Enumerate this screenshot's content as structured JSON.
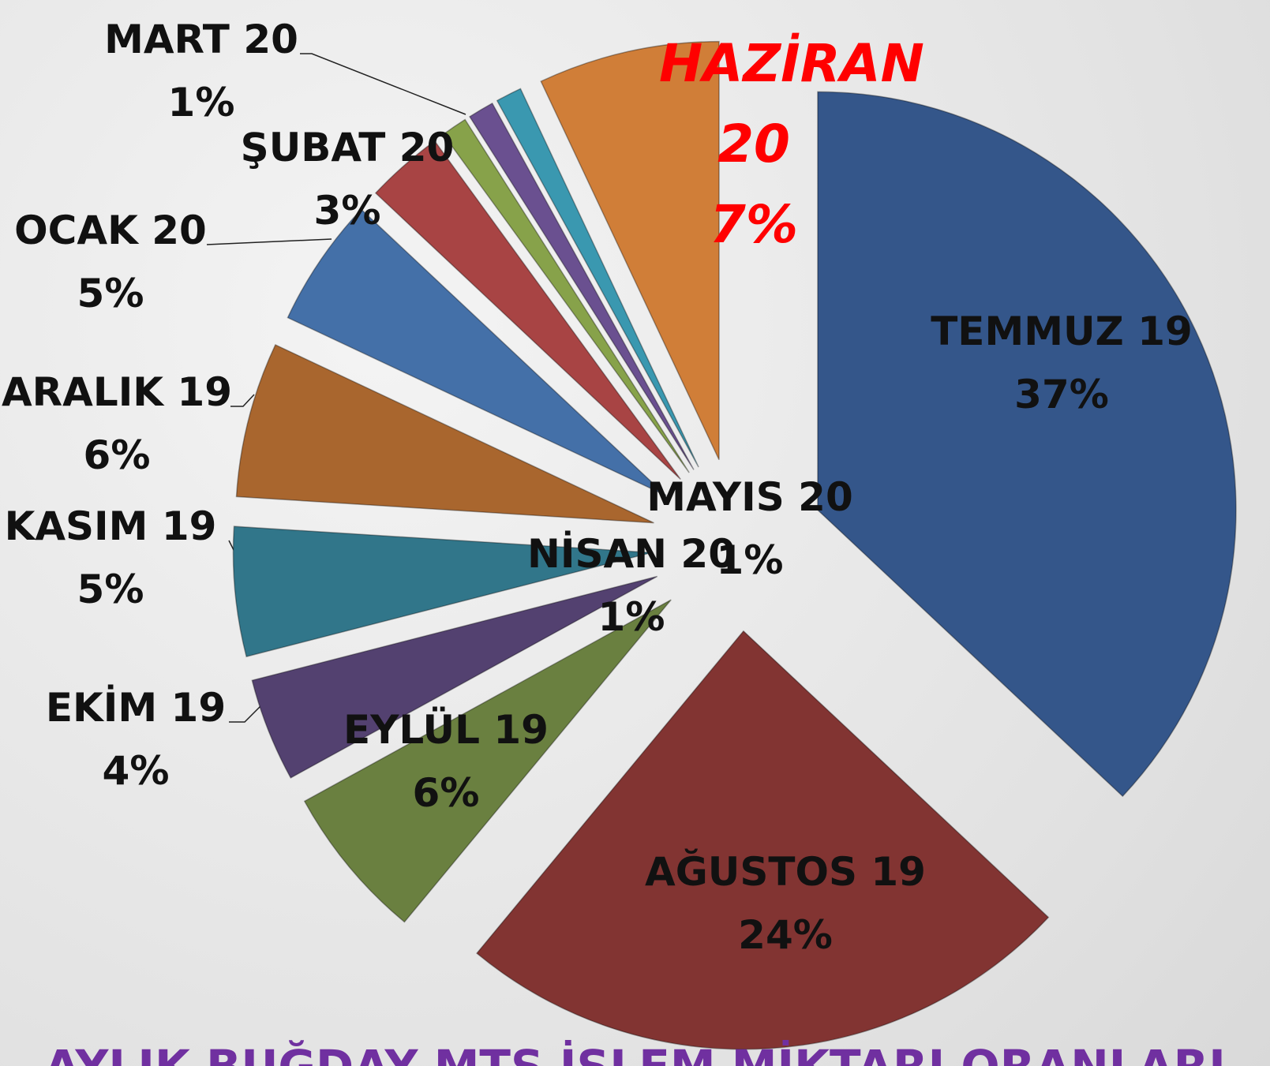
{
  "chart_data": {
    "type": "pie",
    "title": "AYLIK BUĞDAY MTS İŞLEM MİKTARI ORANLARI",
    "categories": [
      "TEMMUZ 19",
      "AĞUSTOS 19",
      "EYLÜL 19",
      "EKİM 19",
      "KASIM 19",
      "ARALIK 19",
      "OCAK 20",
      "ŞUBAT 20",
      "MART 20",
      "NİSAN 20",
      "MAYIS 20",
      "HAZİRAN 20"
    ],
    "values": [
      37,
      24,
      6,
      4,
      5,
      6,
      5,
      3,
      1,
      1,
      1,
      7
    ],
    "value_labels": [
      "37%",
      "24%",
      "6%",
      "4%",
      "5%",
      "6%",
      "5%",
      "3%",
      "1%",
      "1%",
      "1%",
      "7%"
    ],
    "colors": [
      "#34568a",
      "#823432",
      "#6a8040",
      "#534170",
      "#31768a",
      "#a9662e",
      "#4470a8",
      "#a84444",
      "#87a24a",
      "#6a5090",
      "#3a98b0",
      "#d07e38"
    ],
    "label_colors": [
      "#111111",
      "#111111",
      "#111111",
      "#111111",
      "#111111",
      "#111111",
      "#111111",
      "#111111",
      "#111111",
      "#111111",
      "#111111",
      "#ff0000"
    ]
  }
}
